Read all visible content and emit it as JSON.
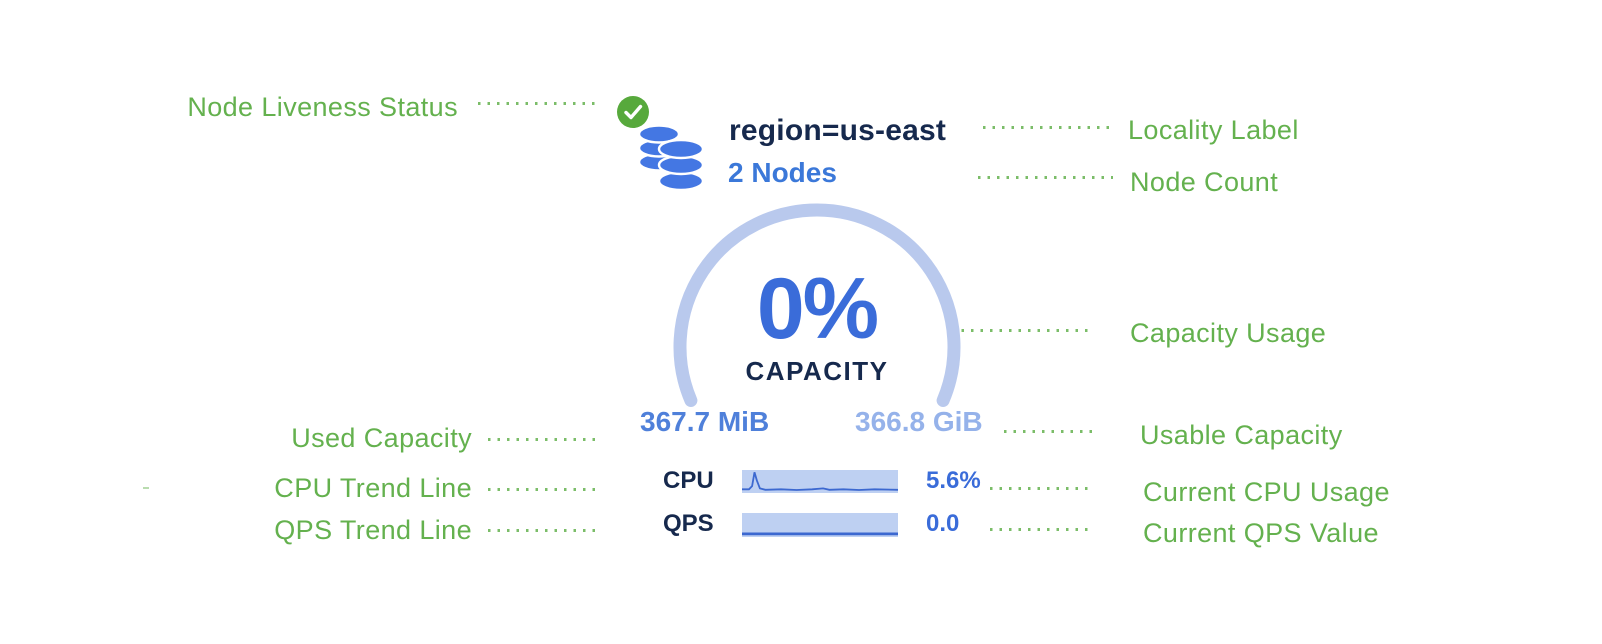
{
  "colors": {
    "green": "#64b14e",
    "check_green": "#57a93c",
    "db_blue": "#4477e3",
    "navy": "#16294d",
    "node_blue": "#3b78d9",
    "pct_blue": "#3a6cd9",
    "used_blue": "#4f80da",
    "usable_blue": "#95b2ea",
    "arc_blue": "#b9c9ed",
    "spark_fill": "#bed0f2",
    "spark_line": "#3c68d0"
  },
  "annotations": {
    "node_liveness": "Node Liveness Status",
    "locality": "Locality Label",
    "node_count": "Node Count",
    "capacity_usage": "Capacity Usage",
    "used_capacity": "Used Capacity",
    "usable_capacity": "Usable Capacity",
    "cpu_trend": "CPU Trend Line",
    "qps_trend": "QPS Trend Line",
    "current_cpu": "Current CPU Usage",
    "current_qps": "Current QPS Value"
  },
  "node": {
    "locality_label": "region=us-east",
    "node_count": "2 Nodes",
    "capacity_percent": "0%",
    "capacity_caption": "CAPACITY",
    "used_capacity": "367.7 MiB",
    "usable_capacity": "366.8 GiB",
    "cpu_label": "CPU",
    "cpu_value": "5.6%",
    "qps_label": "QPS",
    "qps_value": "0.0",
    "cpu_sparkline": [
      [
        0,
        0.84
      ],
      [
        0.045,
        0.84
      ],
      [
        0.065,
        0.7
      ],
      [
        0.08,
        0.1
      ],
      [
        0.095,
        0.45
      ],
      [
        0.115,
        0.8
      ],
      [
        0.15,
        0.86
      ],
      [
        0.25,
        0.84
      ],
      [
        0.35,
        0.87
      ],
      [
        0.45,
        0.84
      ],
      [
        0.52,
        0.8
      ],
      [
        0.56,
        0.86
      ],
      [
        0.65,
        0.84
      ],
      [
        0.75,
        0.87
      ],
      [
        0.85,
        0.84
      ],
      [
        1,
        0.86
      ]
    ],
    "qps_sparkline": [
      [
        0,
        0.87
      ],
      [
        1,
        0.87
      ]
    ]
  },
  "icons": {
    "liveness": "check-circle-icon",
    "node": "database-stack-icon"
  }
}
